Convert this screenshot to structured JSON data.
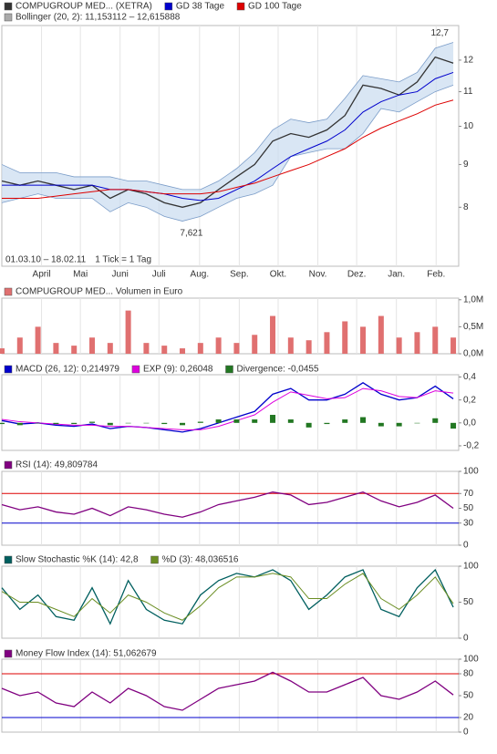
{
  "chart_data": [
    {
      "type": "line",
      "log_scale": true,
      "x": [
        0,
        2,
        4,
        6,
        8,
        10,
        12,
        14,
        16,
        18,
        20,
        22,
        24,
        26,
        28,
        30,
        32,
        34,
        36,
        38,
        40,
        42,
        44,
        46,
        48,
        50
      ],
      "xlim": [
        0,
        50.6
      ],
      "xticks": [
        {
          "value": 4.4,
          "label": "April"
        },
        {
          "value": 8.7,
          "label": "Mai"
        },
        {
          "value": 13.1,
          "label": "Juni"
        },
        {
          "value": 17.4,
          "label": "Juli"
        },
        {
          "value": 21.9,
          "label": "Aug."
        },
        {
          "value": 26.3,
          "label": "Sep."
        },
        {
          "value": 30.6,
          "label": "Okt."
        },
        {
          "value": 35,
          "label": "Nov."
        },
        {
          "value": 39.3,
          "label": "Dez."
        },
        {
          "value": 43.7,
          "label": "Jan."
        },
        {
          "value": 48.1,
          "label": "Feb."
        }
      ],
      "ylim": [
        6.8,
        13.2
      ],
      "yticks": [
        12,
        11,
        10,
        9,
        8
      ],
      "series": [
        {
          "name": "COMPUGROUP MED... (XETRA)",
          "color": "#333333",
          "values": [
            8.6,
            8.5,
            8.6,
            8.5,
            8.4,
            8.5,
            8.2,
            8.4,
            8.3,
            8.1,
            8.0,
            8.1,
            8.4,
            8.7,
            9.0,
            9.6,
            9.8,
            9.7,
            9.9,
            10.3,
            11.2,
            11.1,
            10.9,
            11.3,
            12.1,
            11.9
          ]
        },
        {
          "name": "GD 38 Tage",
          "color": "#0000cc",
          "values": [
            8.5,
            8.5,
            8.5,
            8.5,
            8.5,
            8.5,
            8.4,
            8.4,
            8.35,
            8.3,
            8.2,
            8.15,
            8.2,
            8.4,
            8.6,
            8.9,
            9.2,
            9.4,
            9.6,
            9.9,
            10.4,
            10.7,
            10.9,
            11.0,
            11.4,
            11.6
          ]
        },
        {
          "name": "GD 100 Tage",
          "color": "#dd0000",
          "values": [
            8.2,
            8.2,
            8.2,
            8.25,
            8.3,
            8.35,
            8.4,
            8.4,
            8.35,
            8.3,
            8.3,
            8.3,
            8.35,
            8.45,
            8.55,
            8.7,
            8.85,
            9.0,
            9.2,
            9.4,
            9.7,
            9.95,
            10.15,
            10.35,
            10.6,
            10.75
          ]
        }
      ],
      "band": {
        "name": "Bollinger (20, 2): 11,153112 – 12,615888",
        "color": "#c9dcf0",
        "upper": [
          9.0,
          8.8,
          8.8,
          8.8,
          8.7,
          8.7,
          8.7,
          8.6,
          8.6,
          8.5,
          8.4,
          8.4,
          8.6,
          8.9,
          9.3,
          9.9,
          10.2,
          10.1,
          10.2,
          10.8,
          11.5,
          11.4,
          11.3,
          11.6,
          12.4,
          12.6
        ],
        "lower": [
          8.1,
          8.2,
          8.3,
          8.2,
          8.2,
          8.2,
          7.9,
          8.1,
          8.0,
          7.8,
          7.7,
          7.8,
          8.0,
          8.2,
          8.3,
          8.5,
          9.2,
          9.3,
          9.4,
          9.4,
          9.8,
          10.5,
          10.4,
          10.7,
          11.0,
          11.2
        ]
      },
      "annotations": [
        {
          "label": "12,7",
          "x": 48.5,
          "value": 12.7
        },
        {
          "label": "7,621",
          "x": 21.0,
          "value": 7.621
        }
      ],
      "date_range": "01.03.10 – 18.02.11",
      "tick_note": "1 Tick = 1 Tag"
    },
    {
      "type": "bar",
      "ylim": [
        0,
        1.03
      ],
      "yticks": [
        {
          "value": 1,
          "label": "1,0M"
        },
        {
          "value": 0.5,
          "label": "0,5M"
        },
        {
          "value": 0,
          "label": "0,0M"
        }
      ],
      "series": [
        {
          "name": "COMPUGROUP MED... Volumen in Euro",
          "color": "#e07070",
          "values": [
            0.1,
            0.3,
            0.5,
            0.2,
            0.15,
            0.3,
            0.2,
            0.8,
            0.2,
            0.15,
            0.1,
            0.2,
            0.3,
            0.2,
            0.35,
            0.7,
            0.3,
            0.25,
            0.4,
            0.6,
            0.5,
            0.7,
            0.3,
            0.4,
            0.5,
            0.3
          ]
        }
      ]
    },
    {
      "type": "line",
      "ylim": [
        -0.24,
        0.42
      ],
      "yticks": [
        {
          "value": 0.4,
          "label": "0,4"
        },
        {
          "value": 0.2,
          "label": "0,2"
        },
        {
          "value": 0,
          "label": "0,0"
        },
        {
          "value": -0.2,
          "label": "-0,2"
        }
      ],
      "series": [
        {
          "name": "MACD (26, 12): 0,214979",
          "color": "#0000cc",
          "values": [
            0.02,
            -0.01,
            0.0,
            -0.02,
            -0.03,
            -0.01,
            -0.05,
            -0.03,
            -0.04,
            -0.06,
            -0.08,
            -0.05,
            0.0,
            0.05,
            0.1,
            0.25,
            0.3,
            0.2,
            0.2,
            0.25,
            0.35,
            0.25,
            0.2,
            0.22,
            0.32,
            0.21
          ]
        },
        {
          "name": "EXP (9): 0,26048",
          "color": "#dd00dd",
          "values": [
            0.03,
            0.01,
            0.0,
            -0.01,
            -0.02,
            -0.02,
            -0.03,
            -0.03,
            -0.04,
            -0.05,
            -0.06,
            -0.06,
            -0.03,
            0.02,
            0.07,
            0.18,
            0.27,
            0.24,
            0.21,
            0.22,
            0.3,
            0.28,
            0.23,
            0.22,
            0.28,
            0.26
          ]
        },
        {
          "name": "Divergence: -0,0455",
          "color": "#227722",
          "style": "bar",
          "values": [
            -0.01,
            -0.02,
            0,
            -0.01,
            -0.01,
            0.01,
            -0.02,
            0,
            0,
            -0.01,
            -0.02,
            0.01,
            0.03,
            0.03,
            0.03,
            0.07,
            0.03,
            -0.04,
            -0.01,
            0.03,
            0.05,
            -0.03,
            -0.03,
            0,
            0.04,
            -0.05
          ]
        }
      ]
    },
    {
      "type": "line",
      "ylim": [
        0,
        100
      ],
      "yticks": [
        100,
        70,
        50,
        30,
        0
      ],
      "hlines": [
        {
          "value": 70,
          "color": "#dd0000"
        },
        {
          "value": 30,
          "color": "#0000cc"
        }
      ],
      "series": [
        {
          "name": "RSI (14): 49,809784",
          "color": "#800080",
          "values": [
            55,
            48,
            52,
            45,
            42,
            50,
            40,
            52,
            48,
            42,
            38,
            45,
            55,
            60,
            65,
            72,
            68,
            55,
            58,
            65,
            72,
            60,
            52,
            58,
            68,
            50
          ]
        }
      ]
    },
    {
      "type": "line",
      "ylim": [
        0,
        100
      ],
      "yticks": [
        100,
        50,
        0
      ],
      "series": [
        {
          "name": "Slow Stochastic %K (14): 42,8",
          "color": "#005f5f",
          "values": [
            70,
            40,
            60,
            30,
            25,
            70,
            20,
            80,
            40,
            25,
            20,
            60,
            80,
            90,
            85,
            95,
            80,
            40,
            60,
            85,
            95,
            40,
            30,
            70,
            95,
            43
          ]
        },
        {
          "name": "%D (3): 48,036516",
          "color": "#6b8e23",
          "values": [
            65,
            50,
            50,
            40,
            30,
            55,
            35,
            60,
            50,
            35,
            25,
            45,
            70,
            85,
            85,
            90,
            85,
            55,
            55,
            75,
            90,
            55,
            40,
            60,
            85,
            48
          ]
        }
      ]
    },
    {
      "type": "line",
      "ylim": [
        0,
        100
      ],
      "yticks": [
        100,
        80,
        50,
        20,
        0
      ],
      "hlines": [
        {
          "value": 80,
          "color": "#dd0000"
        },
        {
          "value": 20,
          "color": "#0000cc"
        }
      ],
      "series": [
        {
          "name": "Money Flow Index (14): 51,062679",
          "color": "#800080",
          "values": [
            60,
            50,
            55,
            40,
            35,
            55,
            40,
            60,
            50,
            35,
            30,
            45,
            60,
            65,
            70,
            82,
            70,
            55,
            55,
            65,
            75,
            50,
            45,
            55,
            70,
            51
          ]
        }
      ]
    }
  ]
}
